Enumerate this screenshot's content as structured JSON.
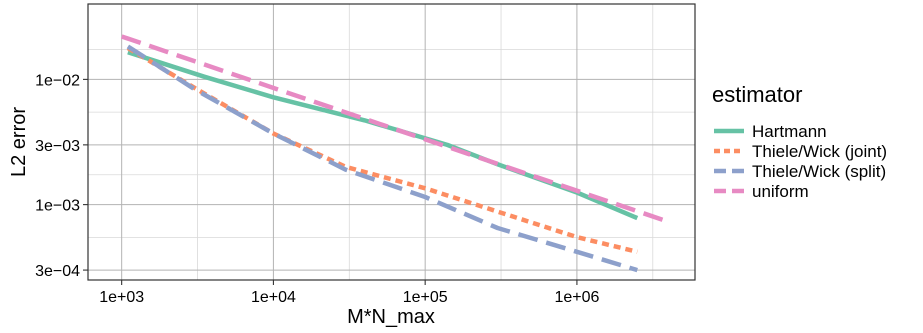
{
  "chart_data": {
    "type": "line",
    "xlabel": "M*N_max",
    "ylabel": "L2 error",
    "xscale": "log10",
    "yscale": "log10",
    "xlim": [
      600,
      6000000
    ],
    "ylim": [
      0.00025,
      0.04
    ],
    "x_ticks": [
      {
        "value": 1000,
        "label": "1e+03"
      },
      {
        "value": 10000,
        "label": "1e+04"
      },
      {
        "value": 100000,
        "label": "1e+05"
      },
      {
        "value": 1000000,
        "label": "1e+06"
      }
    ],
    "y_ticks": [
      {
        "value": 0.0003,
        "label": "3e−04"
      },
      {
        "value": 0.001,
        "label": "1e−03"
      },
      {
        "value": 0.003,
        "label": "3e−03"
      },
      {
        "value": 0.01,
        "label": "1e−02"
      }
    ],
    "grid": true,
    "legend_title": "estimator",
    "legend_position": "right",
    "series": [
      {
        "name": "Hartmann",
        "color": "#66C2A5",
        "dash": "solid",
        "x": [
          1100,
          3500,
          10000,
          40000,
          140000,
          300000,
          1000000,
          2500000
        ],
        "y": [
          0.0165,
          0.0105,
          0.0072,
          0.0047,
          0.003,
          0.0021,
          0.00125,
          0.00078
        ]
      },
      {
        "name": "Thiele/Wick (joint)",
        "color": "#FC8D62",
        "dash": "dotted",
        "x": [
          1100,
          3000,
          10000,
          30000,
          100000,
          300000,
          1000000,
          2500000
        ],
        "y": [
          0.0178,
          0.0086,
          0.0037,
          0.002,
          0.00135,
          0.00088,
          0.00055,
          0.00042
        ]
      },
      {
        "name": "Thiele/Wick (split)",
        "color": "#8DA0CB",
        "dash": "dashed",
        "x": [
          1100,
          3000,
          10000,
          30000,
          100000,
          300000,
          1000000,
          2500000
        ],
        "y": [
          0.0183,
          0.0084,
          0.0037,
          0.0019,
          0.00115,
          0.00065,
          0.00042,
          0.0003
        ]
      },
      {
        "name": "uniform",
        "color": "#E78AC3",
        "dash": "dashed",
        "x": [
          1000,
          4000000
        ],
        "y": [
          0.022,
          0.00073
        ]
      }
    ]
  }
}
